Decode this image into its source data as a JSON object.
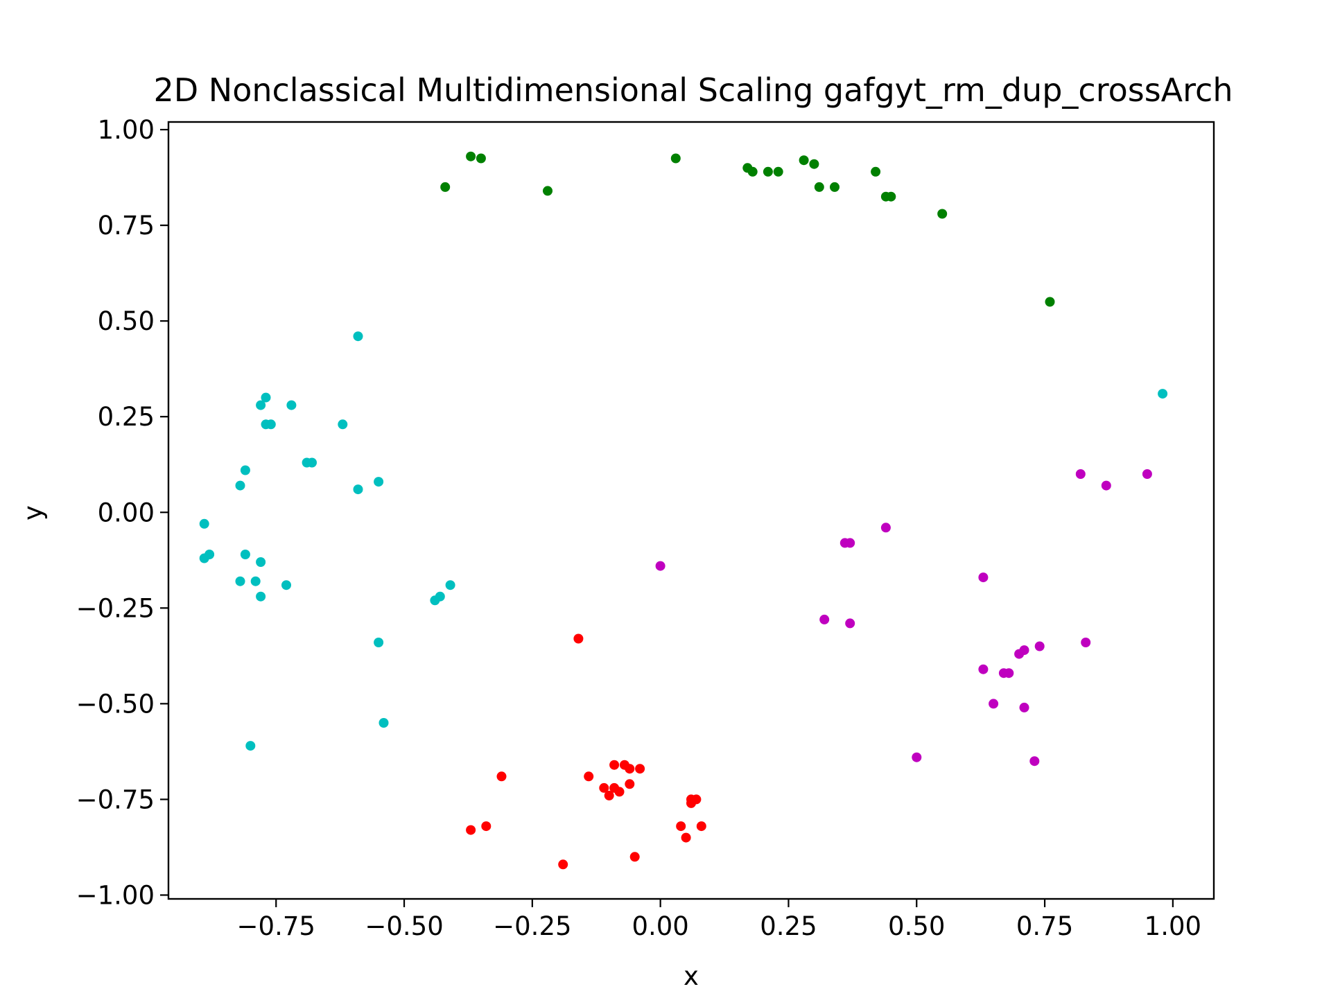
{
  "chart_data": {
    "type": "scatter",
    "title": "2D Nonclassical Multidimensional Scaling gafgyt_rm_dup_crossArch",
    "xlabel": "x",
    "ylabel": "y",
    "xlim": [
      -0.96,
      1.08
    ],
    "ylim": [
      -1.01,
      1.02
    ],
    "x_ticks": [
      -0.75,
      -0.5,
      -0.25,
      0.0,
      0.25,
      0.5,
      0.75,
      1.0
    ],
    "x_tick_labels": [
      "−0.75",
      "−0.50",
      "−0.25",
      "0.00",
      "0.25",
      "0.50",
      "0.75",
      "1.00"
    ],
    "y_ticks": [
      1.0,
      0.75,
      0.5,
      0.25,
      0.0,
      -0.25,
      -0.5,
      -0.75,
      -1.0
    ],
    "y_tick_labels": [
      "1.00",
      "0.75",
      "0.50",
      "0.25",
      "0.00",
      "−0.25",
      "−0.50",
      "−0.75",
      "−1.00"
    ],
    "grid": false,
    "series": [
      {
        "color": "#008000",
        "points": [
          [
            -0.37,
            0.93
          ],
          [
            -0.35,
            0.925
          ],
          [
            -0.42,
            0.85
          ],
          [
            -0.22,
            0.84
          ],
          [
            0.03,
            0.925
          ],
          [
            0.17,
            0.9
          ],
          [
            0.18,
            0.89
          ],
          [
            0.21,
            0.89
          ],
          [
            0.23,
            0.89
          ],
          [
            0.28,
            0.92
          ],
          [
            0.3,
            0.91
          ],
          [
            0.31,
            0.85
          ],
          [
            0.34,
            0.85
          ],
          [
            0.42,
            0.89
          ],
          [
            0.44,
            0.825
          ],
          [
            0.45,
            0.825
          ],
          [
            0.55,
            0.78
          ],
          [
            0.76,
            0.55
          ]
        ]
      },
      {
        "color": "#00bfbf",
        "points": [
          [
            -0.59,
            0.46
          ],
          [
            -0.77,
            0.3
          ],
          [
            -0.78,
            0.28
          ],
          [
            -0.72,
            0.28
          ],
          [
            -0.77,
            0.23
          ],
          [
            -0.76,
            0.23
          ],
          [
            -0.62,
            0.23
          ],
          [
            -0.69,
            0.13
          ],
          [
            -0.68,
            0.13
          ],
          [
            -0.81,
            0.11
          ],
          [
            -0.82,
            0.07
          ],
          [
            -0.59,
            0.06
          ],
          [
            -0.55,
            0.08
          ],
          [
            -0.89,
            -0.03
          ],
          [
            -0.89,
            -0.12
          ],
          [
            -0.88,
            -0.11
          ],
          [
            -0.81,
            -0.11
          ],
          [
            -0.78,
            -0.13
          ],
          [
            -0.82,
            -0.18
          ],
          [
            -0.79,
            -0.18
          ],
          [
            -0.78,
            -0.22
          ],
          [
            -0.73,
            -0.19
          ],
          [
            -0.41,
            -0.19
          ],
          [
            -0.44,
            -0.23
          ],
          [
            -0.43,
            -0.22
          ],
          [
            -0.55,
            -0.34
          ],
          [
            -0.54,
            -0.55
          ],
          [
            -0.8,
            -0.61
          ],
          [
            0.98,
            0.31
          ]
        ]
      },
      {
        "color": "#bf00bf",
        "points": [
          [
            0.0,
            -0.14
          ],
          [
            0.36,
            -0.08
          ],
          [
            0.37,
            -0.08
          ],
          [
            0.44,
            -0.04
          ],
          [
            0.32,
            -0.28
          ],
          [
            0.37,
            -0.29
          ],
          [
            0.63,
            -0.17
          ],
          [
            0.82,
            0.1
          ],
          [
            0.87,
            0.07
          ],
          [
            0.95,
            0.1
          ],
          [
            0.63,
            -0.41
          ],
          [
            0.67,
            -0.42
          ],
          [
            0.68,
            -0.42
          ],
          [
            0.7,
            -0.37
          ],
          [
            0.71,
            -0.36
          ],
          [
            0.74,
            -0.35
          ],
          [
            0.83,
            -0.34
          ],
          [
            0.65,
            -0.5
          ],
          [
            0.71,
            -0.51
          ],
          [
            0.73,
            -0.65
          ],
          [
            0.5,
            -0.64
          ]
        ]
      },
      {
        "color": "#ff0000",
        "points": [
          [
            -0.16,
            -0.33
          ],
          [
            -0.31,
            -0.69
          ],
          [
            -0.14,
            -0.69
          ],
          [
            -0.09,
            -0.66
          ],
          [
            -0.07,
            -0.66
          ],
          [
            -0.06,
            -0.67
          ],
          [
            -0.04,
            -0.67
          ],
          [
            -0.11,
            -0.72
          ],
          [
            -0.1,
            -0.74
          ],
          [
            -0.09,
            -0.72
          ],
          [
            -0.08,
            -0.73
          ],
          [
            -0.06,
            -0.71
          ],
          [
            0.06,
            -0.75
          ],
          [
            0.07,
            -0.75
          ],
          [
            0.06,
            -0.76
          ],
          [
            0.04,
            -0.82
          ],
          [
            0.08,
            -0.82
          ],
          [
            0.05,
            -0.85
          ],
          [
            -0.37,
            -0.83
          ],
          [
            -0.34,
            -0.82
          ],
          [
            -0.05,
            -0.9
          ],
          [
            -0.19,
            -0.92
          ]
        ]
      }
    ]
  }
}
